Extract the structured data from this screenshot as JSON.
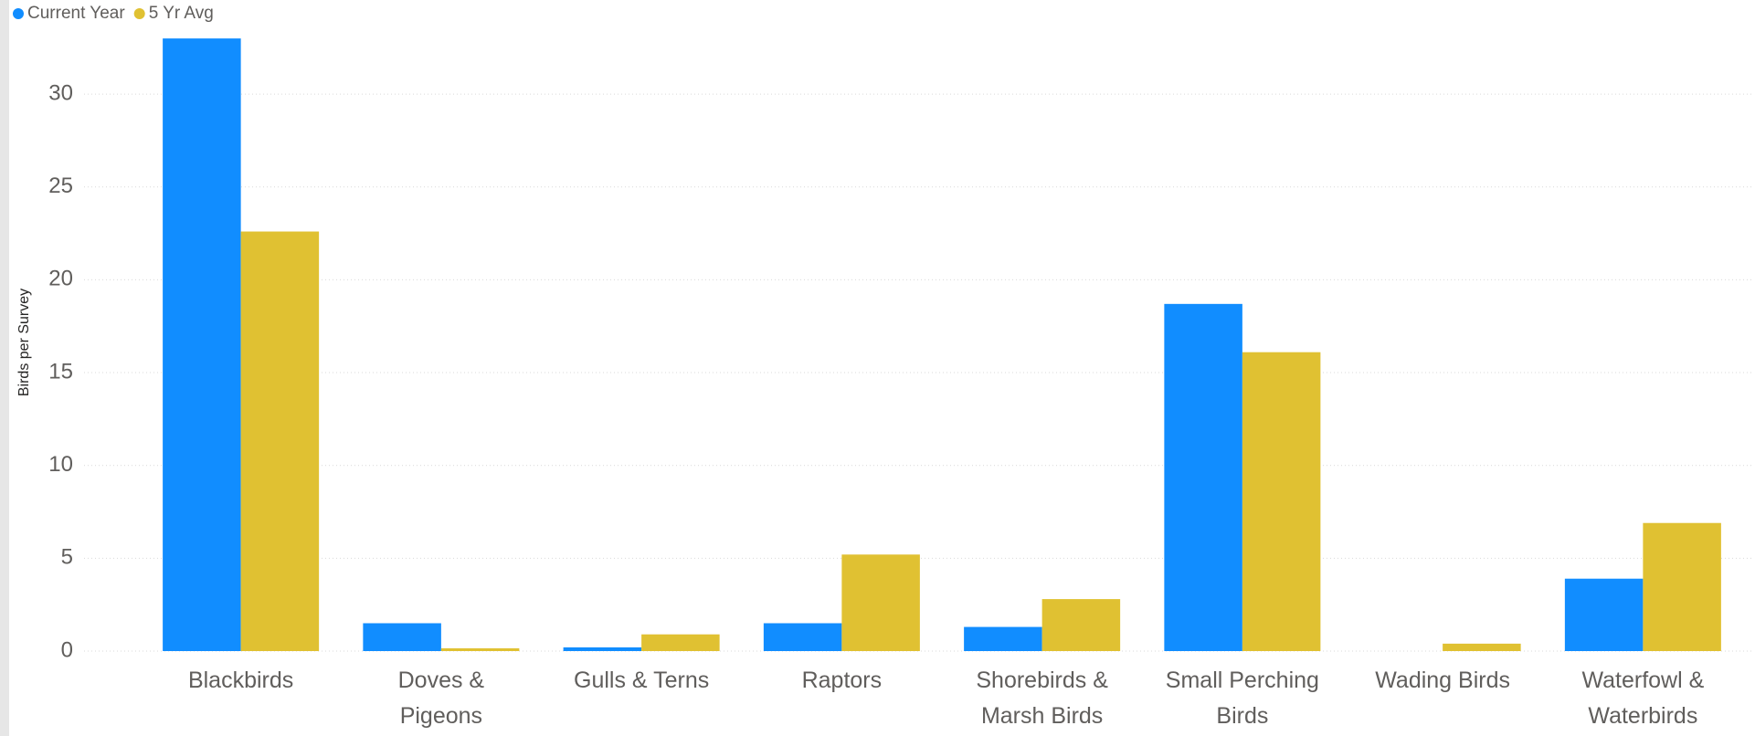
{
  "chart_data": {
    "type": "bar",
    "y_axis_label": "Birds per Survey",
    "categories": [
      "Blackbirds",
      "Doves & Pigeons",
      "Gulls & Terns",
      "Raptors",
      "Shorebirds & Marsh Birds",
      "Small Perching Birds",
      "Wading Birds",
      "Waterfowl & Waterbirds"
    ],
    "series": [
      {
        "name": "Current Year",
        "color": "#118dff",
        "values": [
          33.0,
          1.5,
          0.2,
          1.5,
          1.3,
          18.7,
          0,
          3.9
        ]
      },
      {
        "name": "5 Yr Avg",
        "color": "#e0c132",
        "values": [
          22.6,
          0.15,
          0.9,
          5.2,
          2.8,
          16.1,
          0.4,
          6.9
        ]
      }
    ],
    "ylim": [
      0,
      33.5
    ],
    "yticks": [
      0,
      5,
      10,
      15,
      20,
      25,
      30
    ],
    "grid": true,
    "legend": "top-left"
  }
}
